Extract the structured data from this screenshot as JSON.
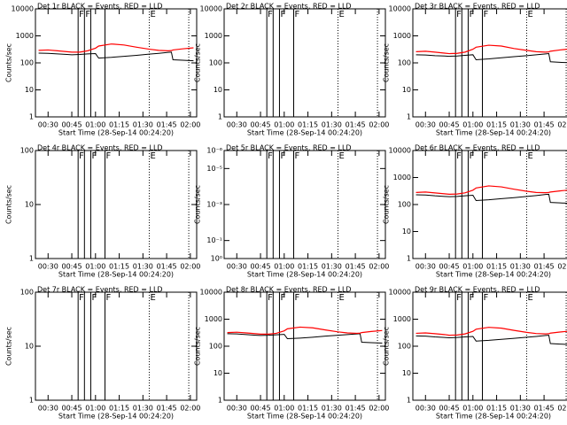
{
  "chart_data": [
    {
      "type": "line",
      "title": "Det 1r BLACK = Events, RED = LLD",
      "ylabel": "Counts/sec",
      "xlabel": "Start Time (28-Sep-14 00:24:20)",
      "log": true,
      "xlim": [
        22,
        124
      ],
      "xticks": [
        {
          "value": 30,
          "label": "00:30"
        },
        {
          "value": 45,
          "label": "00:45"
        },
        {
          "value": 60,
          "label": "01:00"
        },
        {
          "value": 75,
          "label": "01:15"
        },
        {
          "value": 90,
          "label": "01:30"
        },
        {
          "value": 105,
          "label": "01:45"
        },
        {
          "value": 120,
          "label": "02:00"
        }
      ],
      "ylim": [
        1,
        10000
      ],
      "yticks": [
        1,
        10,
        100,
        1000,
        10000
      ],
      "vlines": [
        {
          "x": 49,
          "label": "F"
        },
        {
          "x": 53,
          "label": "F"
        },
        {
          "x": 57
        },
        {
          "x": 66
        },
        {
          "x": 94,
          "label": "E",
          "style": "dotted"
        },
        {
          "x": 119,
          "style": "dotted"
        }
      ],
      "x": [
        24,
        30,
        36,
        42,
        45,
        50,
        55,
        60,
        62,
        70,
        78,
        86,
        94,
        100,
        106,
        108,
        109,
        115,
        122
      ],
      "series": [
        {
          "name": "BLACK",
          "color": "#000000",
          "values": [
            230,
            225,
            215,
            205,
            200,
            205,
            215,
            220,
            150,
            160,
            175,
            190,
            210,
            225,
            245,
            250,
            130,
            125,
            120
          ]
        },
        {
          "name": "RED",
          "color": "#ff0000",
          "values": [
            290,
            300,
            280,
            260,
            250,
            250,
            280,
            350,
            420,
            500,
            460,
            380,
            320,
            290,
            280,
            285,
            300,
            330,
            360
          ]
        }
      ]
    },
    {
      "type": "line",
      "title": "Det 2r BLACK = Events, RED = LLD",
      "ylabel": "Counts/sec",
      "xlabel": "Start Time (28-Sep-14 00:24:20)",
      "log": true,
      "xlim": [
        22,
        124
      ],
      "xticks": [
        {
          "value": 30,
          "label": "00:30"
        },
        {
          "value": 45,
          "label": "00:45"
        },
        {
          "value": 60,
          "label": "01:00"
        },
        {
          "value": 75,
          "label": "01:15"
        },
        {
          "value": 90,
          "label": "01:30"
        },
        {
          "value": 105,
          "label": "01:45"
        },
        {
          "value": 120,
          "label": "02:00"
        }
      ],
      "ylim": [
        1,
        10000
      ],
      "yticks": [
        1,
        10,
        100,
        1000,
        10000
      ],
      "vlines": [
        {
          "x": 49,
          "label": "F"
        },
        {
          "x": 53
        },
        {
          "x": 57,
          "label": "F"
        },
        {
          "x": 66,
          "label": "F"
        },
        {
          "x": 94,
          "label": "E",
          "style": "dotted"
        },
        {
          "x": 119,
          "style": "dotted"
        }
      ],
      "x": [],
      "series": []
    },
    {
      "type": "line",
      "title": "Det 3r BLACK = Events, RED = LLD",
      "ylabel": "Counts/sec",
      "xlabel": "Start Time (28-Sep-14 00:24:20)",
      "log": true,
      "xlim": [
        22,
        124
      ],
      "xticks": [
        {
          "value": 30,
          "label": "00:30"
        },
        {
          "value": 45,
          "label": "00:45"
        },
        {
          "value": 60,
          "label": "01:00"
        },
        {
          "value": 75,
          "label": "01:15"
        },
        {
          "value": 90,
          "label": "01:30"
        },
        {
          "value": 105,
          "label": "01:45"
        },
        {
          "value": 120,
          "label": "02:00"
        }
      ],
      "ylim": [
        1,
        10000
      ],
      "yticks": [
        1,
        10,
        100,
        1000,
        10000
      ],
      "vlines": [
        {
          "x": 49,
          "label": "F"
        },
        {
          "x": 53
        },
        {
          "x": 57,
          "label": "F"
        },
        {
          "x": 66,
          "label": "F"
        },
        {
          "x": 94,
          "label": "E",
          "style": "dotted"
        },
        {
          "x": 119,
          "style": "dotted"
        }
      ],
      "x": [
        24,
        30,
        36,
        42,
        45,
        50,
        55,
        60,
        62,
        70,
        78,
        86,
        94,
        100,
        106,
        108,
        109,
        115,
        122
      ],
      "series": [
        {
          "name": "BLACK",
          "color": "#000000",
          "values": [
            200,
            195,
            185,
            180,
            175,
            180,
            190,
            200,
            130,
            140,
            155,
            170,
            185,
            200,
            215,
            220,
            110,
            105,
            100
          ]
        },
        {
          "name": "RED",
          "color": "#ff0000",
          "values": [
            260,
            270,
            250,
            230,
            220,
            225,
            250,
            320,
            380,
            450,
            420,
            340,
            290,
            260,
            250,
            255,
            270,
            300,
            330
          ]
        }
      ]
    },
    {
      "type": "line",
      "title": "Det 4r BLACK = Events, RED = LLD",
      "ylabel": "Counts/sec",
      "xlabel": "Start Time (28-Sep-14 00:24:20)",
      "log": true,
      "xlim": [
        22,
        124
      ],
      "xticks": [
        {
          "value": 30,
          "label": "00:30"
        },
        {
          "value": 45,
          "label": "00:45"
        },
        {
          "value": 60,
          "label": "01:00"
        },
        {
          "value": 75,
          "label": "01:15"
        },
        {
          "value": 90,
          "label": "01:30"
        },
        {
          "value": 105,
          "label": "01:45"
        },
        {
          "value": 120,
          "label": "02:00"
        }
      ],
      "ylim": [
        1,
        100
      ],
      "yticks": [
        1,
        10,
        100
      ],
      "vlines": [
        {
          "x": 49,
          "label": "F"
        },
        {
          "x": 53
        },
        {
          "x": 57,
          "label": "F"
        },
        {
          "x": 66,
          "label": "F"
        },
        {
          "x": 94,
          "label": "E",
          "style": "dotted"
        },
        {
          "x": 119,
          "style": "dotted"
        }
      ],
      "x": [],
      "series": []
    },
    {
      "type": "line",
      "title": "Det 5r BLACK = Events, RED = LLD",
      "ylabel": "Counts/sec",
      "xlabel": "Start Time (28-Sep-14 00:24:20)",
      "log": true,
      "xlim": [
        22,
        124
      ],
      "xticks": [
        {
          "value": 30,
          "label": "00:30"
        },
        {
          "value": 45,
          "label": "00:45"
        },
        {
          "value": 60,
          "label": "01:00"
        },
        {
          "value": 75,
          "label": "01:15"
        },
        {
          "value": 90,
          "label": "01:30"
        },
        {
          "value": 105,
          "label": "01:45"
        },
        {
          "value": 120,
          "label": "02:00"
        }
      ],
      "ylim": [
        1,
        1e-06
      ],
      "yticks": [
        {
          "value": 1,
          "label": "10⁰"
        },
        {
          "value": 0.1,
          "label": "10⁻¹"
        },
        {
          "value": 0.001,
          "label": "10⁻³"
        },
        {
          "value": 1e-05,
          "label": "10⁻⁵"
        },
        {
          "value": 1e-06,
          "label": "10⁻⁶"
        }
      ],
      "vlines": [
        {
          "x": 49,
          "label": "F"
        },
        {
          "x": 53
        },
        {
          "x": 57,
          "label": "F"
        },
        {
          "x": 66,
          "label": "F"
        },
        {
          "x": 94,
          "label": "E",
          "style": "dotted"
        },
        {
          "x": 119,
          "style": "dotted"
        }
      ],
      "x": [],
      "series": []
    },
    {
      "type": "line",
      "title": "Det 6r BLACK = Events, RED = LLD",
      "ylabel": "Counts/sec",
      "xlabel": "Start Time (28-Sep-14 00:24:20)",
      "log": true,
      "xlim": [
        22,
        124
      ],
      "xticks": [
        {
          "value": 30,
          "label": "00:30"
        },
        {
          "value": 45,
          "label": "00:45"
        },
        {
          "value": 60,
          "label": "01:00"
        },
        {
          "value": 75,
          "label": "01:15"
        },
        {
          "value": 90,
          "label": "01:30"
        },
        {
          "value": 105,
          "label": "01:45"
        },
        {
          "value": 120,
          "label": "02:00"
        }
      ],
      "ylim": [
        1,
        10000
      ],
      "yticks": [
        1,
        10,
        100,
        1000,
        10000
      ],
      "vlines": [
        {
          "x": 49,
          "label": "F"
        },
        {
          "x": 53
        },
        {
          "x": 57,
          "label": "F"
        },
        {
          "x": 66,
          "label": "F"
        },
        {
          "x": 94,
          "label": "E",
          "style": "dotted"
        },
        {
          "x": 119,
          "style": "dotted"
        }
      ],
      "x": [
        24,
        30,
        36,
        42,
        45,
        50,
        55,
        60,
        62,
        70,
        78,
        86,
        94,
        100,
        106,
        108,
        109,
        115,
        122
      ],
      "series": [
        {
          "name": "BLACK",
          "color": "#000000",
          "values": [
            230,
            225,
            210,
            200,
            195,
            200,
            210,
            220,
            140,
            150,
            165,
            180,
            200,
            215,
            235,
            240,
            120,
            115,
            110
          ]
        },
        {
          "name": "RED",
          "color": "#ff0000",
          "values": [
            280,
            290,
            270,
            250,
            240,
            245,
            270,
            340,
            410,
            490,
            450,
            370,
            310,
            280,
            275,
            280,
            290,
            320,
            350
          ]
        }
      ]
    },
    {
      "type": "line",
      "title": "Det 7r BLACK = Events, RED = LLD",
      "ylabel": "Counts/sec",
      "xlabel": "Start Time (28-Sep-14 00:24:20)",
      "log": true,
      "xlim": [
        22,
        124
      ],
      "xticks": [
        {
          "value": 30,
          "label": "00:30"
        },
        {
          "value": 45,
          "label": "00:45"
        },
        {
          "value": 60,
          "label": "01:00"
        },
        {
          "value": 75,
          "label": "01:15"
        },
        {
          "value": 90,
          "label": "01:30"
        },
        {
          "value": 105,
          "label": "01:45"
        },
        {
          "value": 120,
          "label": "02:00"
        }
      ],
      "ylim": [
        1,
        100
      ],
      "yticks": [
        1,
        10,
        100
      ],
      "vlines": [
        {
          "x": 49,
          "label": "F"
        },
        {
          "x": 53
        },
        {
          "x": 57,
          "label": "F"
        },
        {
          "x": 66,
          "label": "F"
        },
        {
          "x": 94,
          "label": "E",
          "style": "dotted"
        },
        {
          "x": 119,
          "style": "dotted"
        }
      ],
      "x": [],
      "series": []
    },
    {
      "type": "line",
      "title": "Det 8r BLACK = Events, RED = LLD",
      "ylabel": "Counts/sec",
      "xlabel": "Start Time (28-Sep-14 00:24:20)",
      "log": true,
      "xlim": [
        22,
        124
      ],
      "xticks": [
        {
          "value": 30,
          "label": "00:30"
        },
        {
          "value": 45,
          "label": "00:45"
        },
        {
          "value": 60,
          "label": "01:00"
        },
        {
          "value": 75,
          "label": "01:15"
        },
        {
          "value": 90,
          "label": "01:30"
        },
        {
          "value": 105,
          "label": "01:45"
        },
        {
          "value": 120,
          "label": "02:00"
        }
      ],
      "ylim": [
        1,
        10000
      ],
      "yticks": [
        1,
        10,
        100,
        1000,
        10000
      ],
      "vlines": [
        {
          "x": 49,
          "label": "F"
        },
        {
          "x": 53
        },
        {
          "x": 57,
          "label": "F"
        },
        {
          "x": 66,
          "label": "F"
        },
        {
          "x": 94,
          "label": "E",
          "style": "dotted"
        },
        {
          "x": 119,
          "style": "dotted"
        }
      ],
      "x": [
        24,
        30,
        36,
        42,
        45,
        50,
        55,
        60,
        62,
        70,
        78,
        86,
        94,
        100,
        106,
        108,
        109,
        115,
        122
      ],
      "series": [
        {
          "name": "BLACK",
          "color": "#000000",
          "values": [
            290,
            285,
            270,
            255,
            250,
            255,
            265,
            275,
            190,
            200,
            215,
            235,
            255,
            270,
            285,
            290,
            140,
            135,
            130
          ]
        },
        {
          "name": "RED",
          "color": "#ff0000",
          "values": [
            320,
            330,
            310,
            290,
            280,
            280,
            300,
            370,
            440,
            510,
            480,
            400,
            340,
            310,
            300,
            305,
            320,
            350,
            380
          ]
        }
      ]
    },
    {
      "type": "line",
      "title": "Det 9r BLACK = Events, RED = LLD",
      "ylabel": "Counts/sec",
      "xlabel": "Start Time (28-Sep-14 00:24:20)",
      "log": true,
      "xlim": [
        22,
        124
      ],
      "xticks": [
        {
          "value": 30,
          "label": "00:30"
        },
        {
          "value": 45,
          "label": "00:45"
        },
        {
          "value": 60,
          "label": "01:00"
        },
        {
          "value": 75,
          "label": "01:15"
        },
        {
          "value": 90,
          "label": "01:30"
        },
        {
          "value": 105,
          "label": "01:45"
        },
        {
          "value": 120,
          "label": "02:00"
        }
      ],
      "ylim": [
        1,
        10000
      ],
      "yticks": [
        1,
        10,
        100,
        1000,
        10000
      ],
      "vlines": [
        {
          "x": 49,
          "label": "F"
        },
        {
          "x": 53
        },
        {
          "x": 57,
          "label": "F"
        },
        {
          "x": 66,
          "label": "F"
        },
        {
          "x": 94,
          "label": "E",
          "style": "dotted"
        },
        {
          "x": 119,
          "style": "dotted"
        }
      ],
      "x": [
        24,
        30,
        36,
        42,
        45,
        50,
        55,
        60,
        62,
        70,
        78,
        86,
        94,
        100,
        106,
        108,
        109,
        115,
        122
      ],
      "series": [
        {
          "name": "BLACK",
          "color": "#000000",
          "values": [
            240,
            235,
            220,
            210,
            205,
            210,
            220,
            230,
            155,
            165,
            180,
            195,
            215,
            230,
            250,
            255,
            125,
            120,
            115
          ]
        },
        {
          "name": "RED",
          "color": "#ff0000",
          "values": [
            300,
            310,
            290,
            270,
            255,
            260,
            285,
            355,
            425,
            500,
            465,
            385,
            325,
            295,
            285,
            290,
            305,
            335,
            365
          ]
        }
      ]
    }
  ]
}
